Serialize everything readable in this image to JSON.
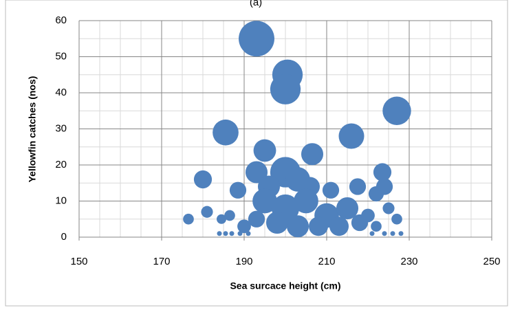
{
  "chart_data": {
    "type": "bubble",
    "title": "(a)",
    "x_label": "Sea surcace height (cm)",
    "y_label": "Yellowfin catches (nos)",
    "color": "#4f81bd",
    "grid": true,
    "xlim": [
      150,
      250
    ],
    "xticks": [
      150,
      170,
      190,
      210,
      230,
      250
    ],
    "ylim": [
      0,
      60
    ],
    "yticks": [
      0,
      10,
      20,
      30,
      40,
      50,
      60
    ],
    "series": [
      {
        "name": "Yellowfin",
        "x": [
          193,
          200.5,
          200,
          227,
          185.5,
          216,
          200,
          195,
          206.5,
          203,
          193,
          180,
          223.5,
          224,
          217.5,
          188.5,
          211,
          222,
          196,
          206,
          195,
          200,
          205,
          210,
          215,
          198,
          203,
          208,
          213,
          218,
          193,
          220,
          190,
          222,
          225,
          176.5,
          181,
          184.5,
          186.5,
          227,
          184,
          185.5,
          187,
          189,
          191,
          221,
          224,
          226,
          228
        ],
        "values": [
          55,
          45,
          41,
          35,
          29,
          28,
          18,
          24,
          23,
          16,
          18,
          16,
          18,
          14,
          14,
          13,
          13,
          12,
          14,
          14,
          10,
          8,
          10,
          6,
          8,
          4,
          3,
          3,
          3,
          4,
          5,
          6,
          3,
          3,
          8,
          5,
          7,
          5,
          6,
          5,
          1,
          1,
          1,
          1,
          1,
          1,
          1,
          1,
          1
        ],
        "sizes": [
          55,
          40,
          40,
          35,
          29,
          28,
          40,
          22,
          21,
          26,
          21,
          14,
          14,
          12,
          12,
          12,
          12,
          10,
          21,
          16,
          26,
          33,
          26,
          26,
          21,
          21,
          21,
          16,
          16,
          12,
          12,
          8,
          8,
          5,
          6,
          5,
          6,
          4,
          5,
          5,
          1,
          1,
          1,
          1,
          1,
          1,
          1,
          1,
          1
        ]
      }
    ]
  }
}
